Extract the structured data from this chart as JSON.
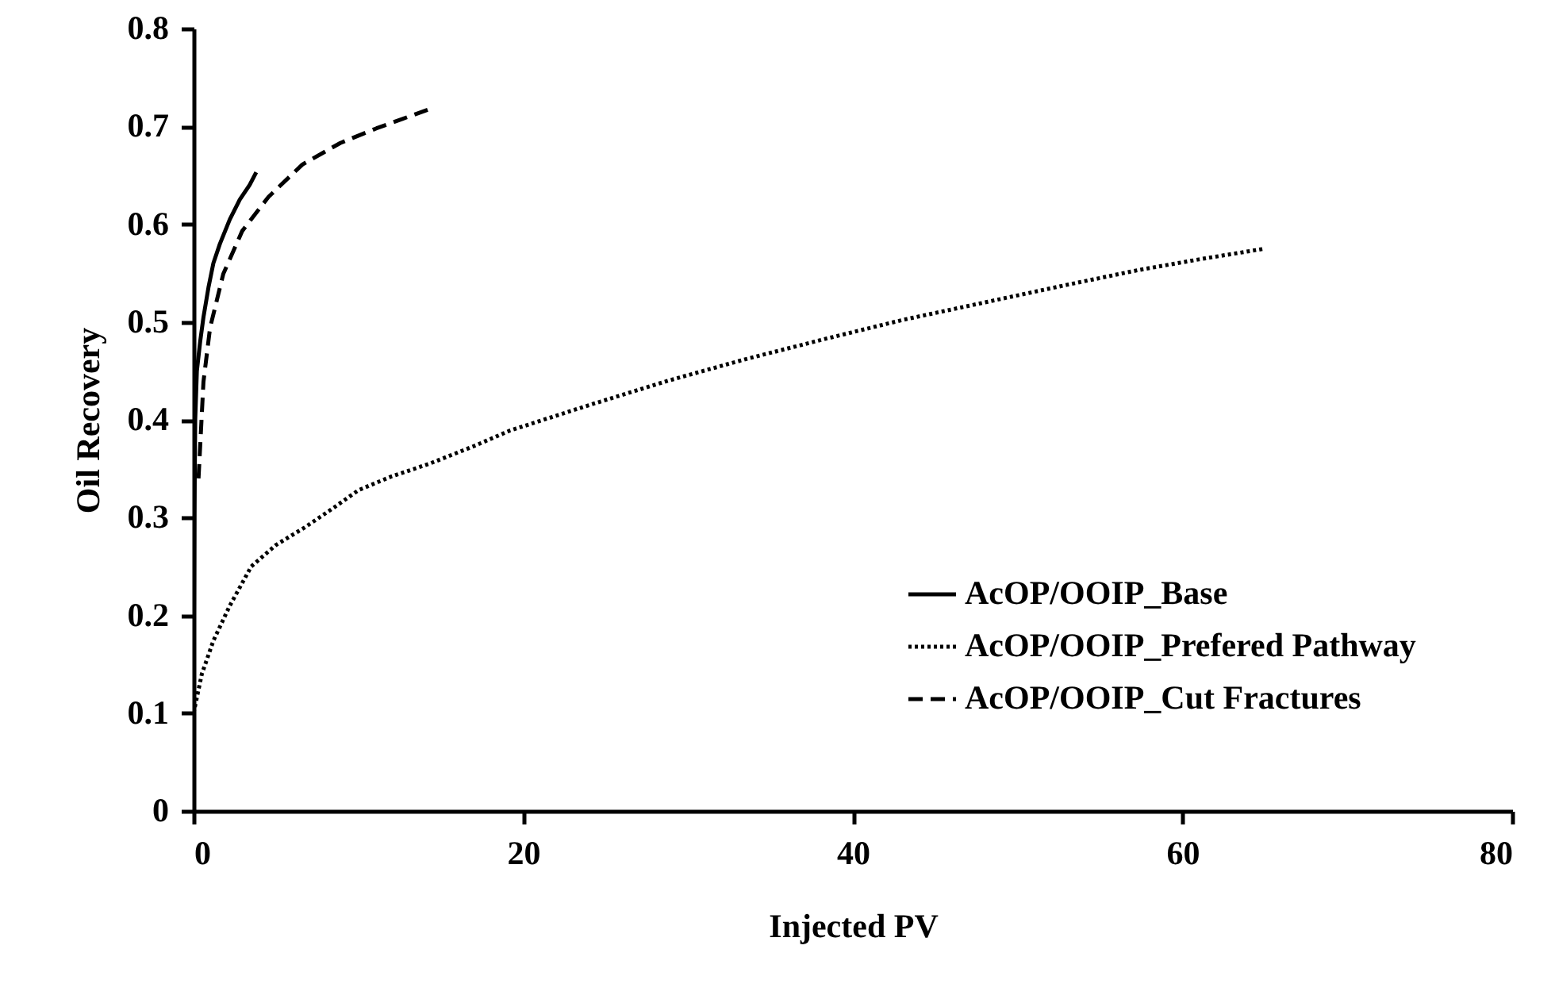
{
  "chart_data": {
    "type": "line",
    "xlabel": "Injected PV",
    "ylabel": "Oil Recovery",
    "xlim": [
      0,
      80
    ],
    "ylim": [
      0,
      0.8
    ],
    "xticks": [
      0,
      20,
      40,
      60,
      80
    ],
    "yticks": [
      0,
      0.1,
      0.2,
      0.3,
      0.4,
      0.5,
      0.6,
      0.7,
      0.8
    ],
    "grid": false,
    "legend": "bottom right",
    "marker": "none",
    "series": [
      {
        "name": "AcOP/OOIP_Base",
        "color": "#000000",
        "line_style": "solid",
        "x": [
          0,
          0.05,
          0.1,
          0.2,
          0.4,
          0.6,
          0.9,
          1.2,
          1.6,
          2.2,
          2.8,
          3.4,
          3.8
        ],
        "values": [
          0.1,
          0.3,
          0.4,
          0.45,
          0.48,
          0.505,
          0.535,
          0.56,
          0.58,
          0.605,
          0.625,
          0.64,
          0.653
        ]
      },
      {
        "name": "AcOP/OOIP_Prefered Pathway",
        "color": "#000000",
        "line_style": "dotted",
        "x": [
          0,
          0.5,
          1.2,
          2.2,
          3.5,
          5,
          6.75,
          8.5,
          10,
          12,
          14.3,
          17,
          19.2,
          24,
          28.8,
          33.5,
          38.4,
          43,
          48,
          53,
          57.3,
          61,
          65
        ],
        "values": [
          0.1,
          0.14,
          0.174,
          0.21,
          0.25,
          0.272,
          0.29,
          0.31,
          0.328,
          0.342,
          0.355,
          0.373,
          0.389,
          0.415,
          0.44,
          0.462,
          0.483,
          0.502,
          0.52,
          0.538,
          0.553,
          0.564,
          0.575
        ]
      },
      {
        "name": "AcOP/OOIP_Cut Fractures",
        "color": "#000000",
        "line_style": "dashed",
        "x": [
          0.3,
          0.4,
          0.6,
          1.0,
          1.8,
          2.95,
          4.55,
          6.6,
          8.9,
          11.1,
          14.2
        ],
        "values": [
          0.34,
          0.373,
          0.439,
          0.494,
          0.549,
          0.593,
          0.628,
          0.661,
          0.683,
          0.698,
          0.717
        ]
      }
    ]
  }
}
